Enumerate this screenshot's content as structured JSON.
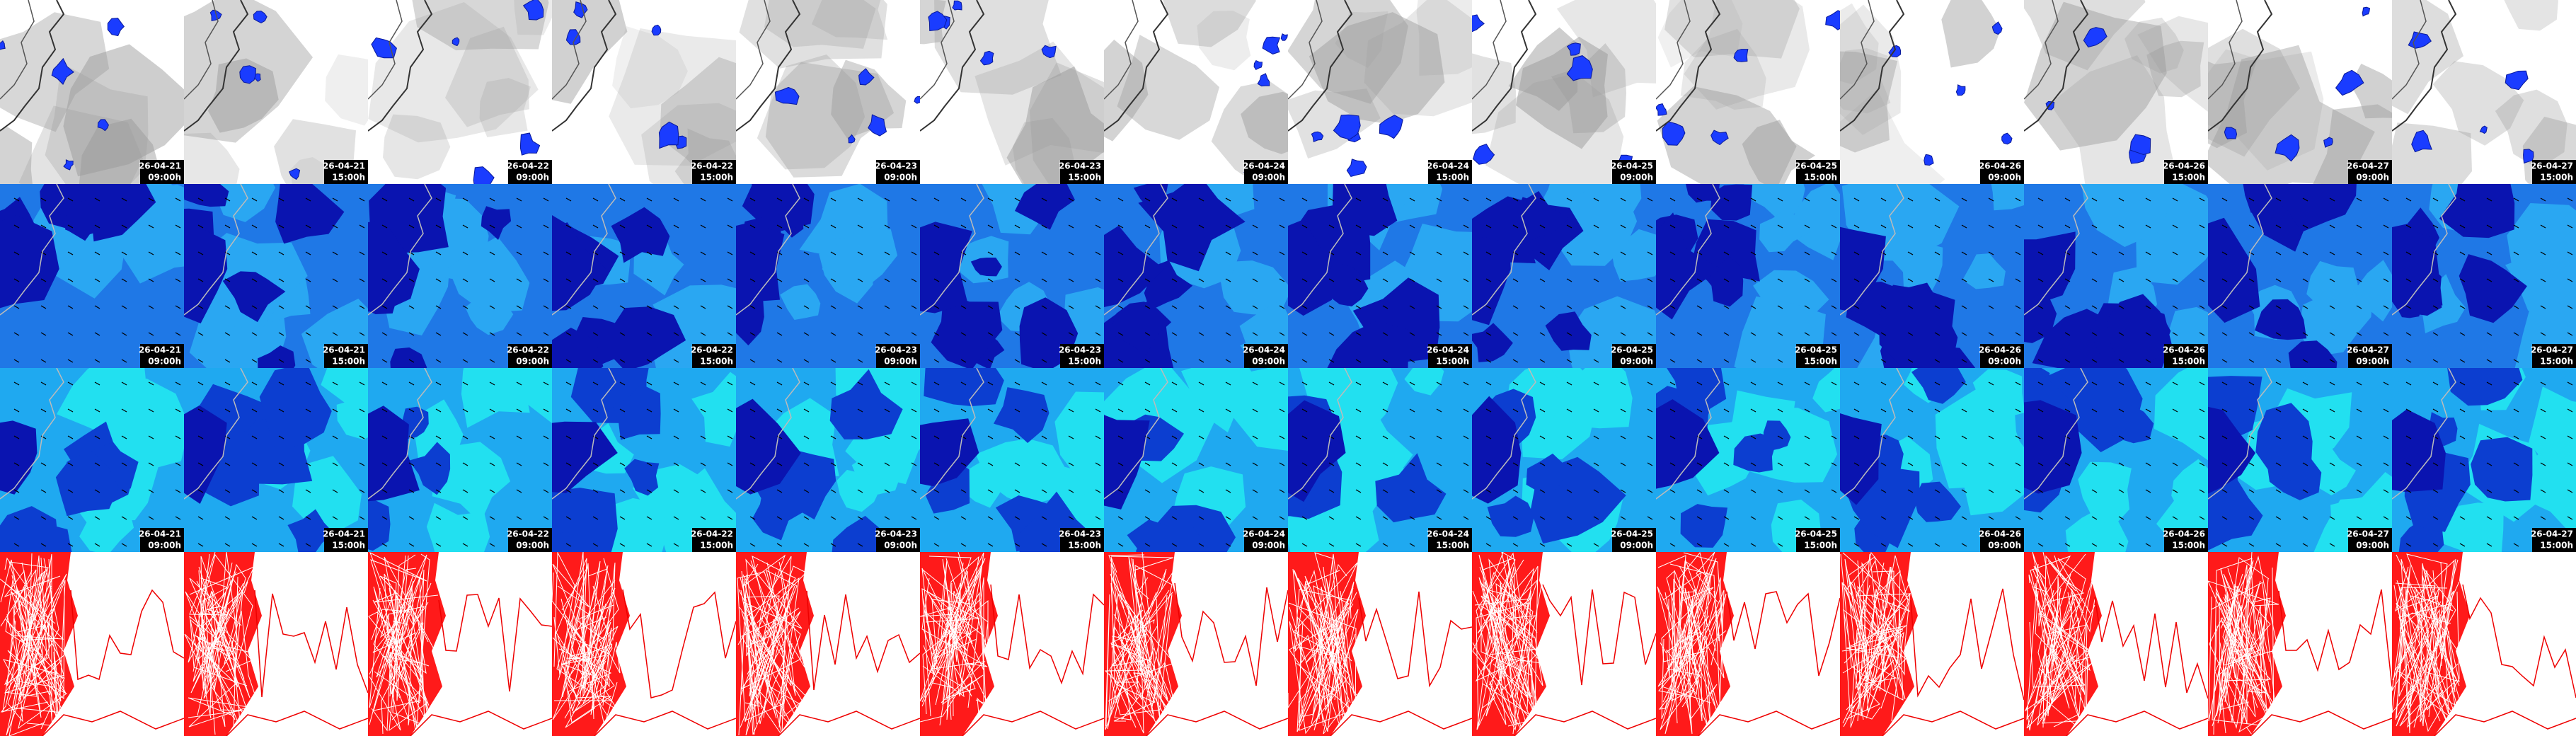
{
  "rows": [
    {
      "cells": [
        {
          "date": "26-04-21",
          "time": "09:00h"
        },
        {
          "date": "26-04-21",
          "time": "15:00h"
        },
        {
          "date": "26-04-22",
          "time": "09:00h"
        },
        {
          "date": "26-04-22",
          "time": "15:00h"
        },
        {
          "date": "26-04-23",
          "time": "09:00h"
        },
        {
          "date": "26-04-23",
          "time": "15:00h"
        },
        {
          "date": "26-04-24",
          "time": "09:00h"
        },
        {
          "date": "26-04-24",
          "time": "15:00h"
        },
        {
          "date": "26-04-25",
          "time": "09:00h"
        },
        {
          "date": "26-04-25",
          "time": "15:00h"
        },
        {
          "date": "26-04-26",
          "time": "09:00h"
        },
        {
          "date": "26-04-26",
          "time": "15:00h"
        },
        {
          "date": "26-04-27",
          "time": "09:00h"
        },
        {
          "date": "26-04-27",
          "time": "15:00h"
        }
      ]
    },
    {
      "cells": [
        {
          "date": "26-04-21",
          "time": "09:00h"
        },
        {
          "date": "26-04-21",
          "time": "15:00h"
        },
        {
          "date": "26-04-22",
          "time": "09:00h"
        },
        {
          "date": "26-04-22",
          "time": "15:00h"
        },
        {
          "date": "26-04-23",
          "time": "09:00h"
        },
        {
          "date": "26-04-23",
          "time": "15:00h"
        },
        {
          "date": "26-04-24",
          "time": "09:00h"
        },
        {
          "date": "26-04-24",
          "time": "15:00h"
        },
        {
          "date": "26-04-25",
          "time": "09:00h"
        },
        {
          "date": "26-04-25",
          "time": "15:00h"
        },
        {
          "date": "26-04-26",
          "time": "09:00h"
        },
        {
          "date": "26-04-26",
          "time": "15:00h"
        },
        {
          "date": "26-04-27",
          "time": "09:00h"
        },
        {
          "date": "26-04-27",
          "time": "15:00h"
        }
      ]
    },
    {
      "cells": [
        {
          "date": "26-04-21",
          "time": "09:00h"
        },
        {
          "date": "26-04-21",
          "time": "15:00h"
        },
        {
          "date": "26-04-22",
          "time": "09:00h"
        },
        {
          "date": "26-04-22",
          "time": "15:00h"
        },
        {
          "date": "26-04-23",
          "time": "09:00h"
        },
        {
          "date": "26-04-23",
          "time": "15:00h"
        },
        {
          "date": "26-04-24",
          "time": "09:00h"
        },
        {
          "date": "26-04-24",
          "time": "15:00h"
        },
        {
          "date": "26-04-25",
          "time": "09:00h"
        },
        {
          "date": "26-04-25",
          "time": "15:00h"
        },
        {
          "date": "26-04-26",
          "time": "09:00h"
        },
        {
          "date": "26-04-26",
          "time": "15:00h"
        },
        {
          "date": "26-04-27",
          "time": "09:00h"
        },
        {
          "date": "26-04-27",
          "time": "15:00h"
        }
      ]
    }
  ]
}
